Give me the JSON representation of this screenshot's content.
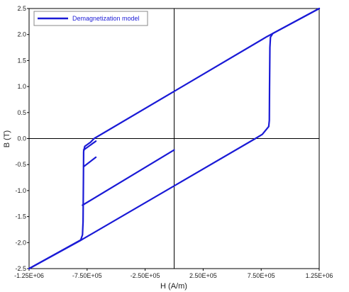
{
  "chart_data": {
    "type": "line",
    "title": "",
    "xlabel": "H (A/m)",
    "ylabel": "B (T)",
    "xlim": [
      -1250000,
      1250000
    ],
    "ylim": [
      -2.5,
      2.5
    ],
    "x_tick_values": [
      -1250000,
      -750000,
      -250000,
      250000,
      750000,
      1250000
    ],
    "x_tick_labels": [
      "-1.25E+06",
      "-7.50E+05",
      "-2.50E+05",
      "2.50E+05",
      "7.50E+05",
      "1.25E+06"
    ],
    "y_tick_values": [
      2.5,
      2.0,
      1.5,
      1.0,
      0.5,
      0.0,
      -0.5,
      -1.0,
      -1.5,
      -2.0,
      -2.5
    ],
    "y_tick_labels": [
      "2.5",
      "2.0",
      "1.5",
      "1.0",
      "0.5",
      "0.0",
      "-0.5",
      "-1.0",
      "-1.5",
      "-2.0",
      "-2.5"
    ],
    "grid": false,
    "zero_axes": true,
    "legend_position": "top-left",
    "series": [
      {
        "name": "Demagnetization model",
        "color": "#1a1ad6",
        "segments": [
          [
            [
              -1250000,
              -2.5
            ],
            [
              -805000,
              -1.95
            ],
            [
              -790000,
              -1.85
            ],
            [
              -785000,
              -1.6
            ],
            [
              -782000,
              -0.8
            ],
            [
              -780000,
              -0.25
            ],
            [
              -770000,
              -0.15
            ],
            [
              -720000,
              -0.07
            ],
            [
              -690000,
              0.0
            ],
            [
              755000,
              1.9
            ],
            [
              800000,
              1.96
            ],
            [
              850000,
              2.02
            ],
            [
              1250000,
              2.5
            ]
          ],
          [
            [
              1250000,
              2.5
            ],
            [
              850000,
              2.02
            ],
            [
              830000,
              1.95
            ],
            [
              825000,
              1.75
            ],
            [
              822000,
              1.0
            ],
            [
              820000,
              0.35
            ],
            [
              815000,
              0.23
            ],
            [
              760000,
              0.08
            ],
            [
              700000,
              0.0
            ],
            [
              -800000,
              -1.95
            ],
            [
              -1250000,
              -2.5
            ]
          ],
          [
            [
              -675000,
              -0.05
            ],
            [
              -780000,
              -0.22
            ]
          ],
          [
            [
              -675000,
              -0.36
            ],
            [
              -780000,
              -0.54
            ]
          ],
          [
            [
              0,
              -0.22
            ],
            [
              -790000,
              -1.28
            ]
          ]
        ]
      }
    ]
  }
}
